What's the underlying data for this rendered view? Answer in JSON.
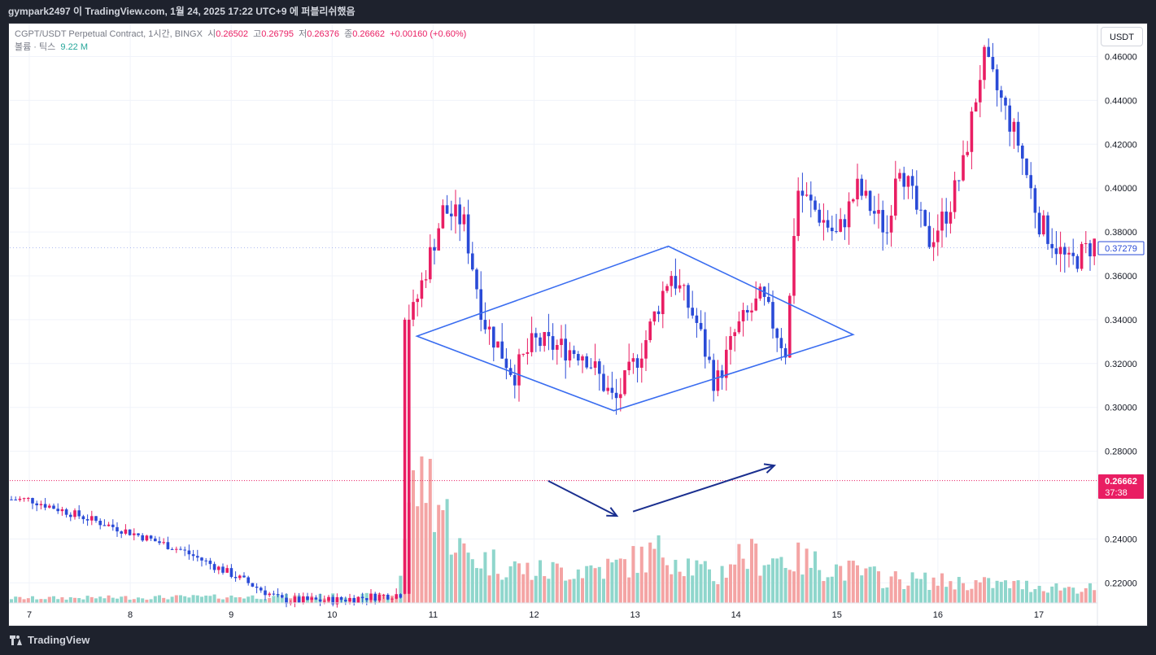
{
  "header": {
    "text": "gympark2497 이 TradingView.com, 1월 24, 2025 17:22 UTC+9 에 퍼블리쉬했음"
  },
  "legend": {
    "symbol": "CGPT/USDT Perpetual Contract, 1시간, BINGX",
    "open_label": "시",
    "open": "0.26502",
    "high_label": "고",
    "high": "0.26795",
    "low_label": "저",
    "low": "0.26376",
    "close_label": "종",
    "close": "0.26662",
    "change": "+0.00160 (+0.60%)",
    "volume_label": "볼륨 · 틱스",
    "volume": "9.22 M"
  },
  "currency_button": "USDT",
  "footer": {
    "brand": "TradingView"
  },
  "colors": {
    "up": "#e91e63",
    "down": "#2a4bd7",
    "vol_up": "#f4a4a4",
    "vol_down": "#8fd6cc",
    "drawing": "#3a6df0",
    "arrow": "#1a2f8f",
    "last_price": "#e91e63",
    "current_price": "#2a4bd7"
  },
  "chart_data": {
    "type": "candlestick",
    "interval": "1시간",
    "ylim": [
      0.21,
      0.47
    ],
    "y_ticks": [
      "0.46000",
      "0.44000",
      "0.42000",
      "0.40000",
      "0.38000",
      "0.36000",
      "0.34000",
      "0.32000",
      "0.30000",
      "0.28000",
      "0.24000",
      "0.22000"
    ],
    "x_ticks": [
      "7",
      "8",
      "9",
      "10",
      "11",
      "12",
      "13",
      "14",
      "15",
      "16",
      "17"
    ],
    "price_labels": {
      "current": "0.37279",
      "last": "0.26662",
      "countdown": "37:38"
    },
    "path": [
      {
        "day": 7,
        "price": 0.258
      },
      {
        "day": 8,
        "price": 0.243
      },
      {
        "day": 8.5,
        "price": 0.235
      },
      {
        "day": 9,
        "price": 0.224
      },
      {
        "day": 9.5,
        "price": 0.212
      },
      {
        "day": 10,
        "price": 0.212
      },
      {
        "day": 10.7,
        "price": 0.215
      },
      {
        "day": 10.75,
        "price": 0.335
      },
      {
        "day": 11.1,
        "price": 0.39
      },
      {
        "day": 11.3,
        "price": 0.385
      },
      {
        "day": 11.5,
        "price": 0.34
      },
      {
        "day": 11.8,
        "price": 0.315
      },
      {
        "day": 12.0,
        "price": 0.33
      },
      {
        "day": 12.5,
        "price": 0.325
      },
      {
        "day": 12.8,
        "price": 0.302
      },
      {
        "day": 13.1,
        "price": 0.33
      },
      {
        "day": 13.35,
        "price": 0.362
      },
      {
        "day": 13.6,
        "price": 0.34
      },
      {
        "day": 13.8,
        "price": 0.31
      },
      {
        "day": 14.0,
        "price": 0.335
      },
      {
        "day": 14.25,
        "price": 0.35
      },
      {
        "day": 14.5,
        "price": 0.325
      },
      {
        "day": 14.6,
        "price": 0.4
      },
      {
        "day": 15.0,
        "price": 0.378
      },
      {
        "day": 15.2,
        "price": 0.4
      },
      {
        "day": 15.5,
        "price": 0.38
      },
      {
        "day": 15.6,
        "price": 0.415
      },
      {
        "day": 15.9,
        "price": 0.375
      },
      {
        "day": 16.1,
        "price": 0.39
      },
      {
        "day": 16.25,
        "price": 0.41
      },
      {
        "day": 16.45,
        "price": 0.46
      },
      {
        "day": 16.8,
        "price": 0.42
      },
      {
        "day": 17.0,
        "price": 0.385
      },
      {
        "day": 17.3,
        "price": 0.365
      },
      {
        "day": 17.55,
        "price": 0.375
      }
    ],
    "volume_profile": [
      {
        "day": 7,
        "vol": 0.2
      },
      {
        "day": 10.65,
        "vol": 0.3
      },
      {
        "day": 10.75,
        "vol": 4
      },
      {
        "day": 10.9,
        "vol": 5.7
      },
      {
        "day": 11.3,
        "vol": 2
      },
      {
        "day": 12.0,
        "vol": 1.3
      },
      {
        "day": 12.8,
        "vol": 1.5
      },
      {
        "day": 13.3,
        "vol": 2.2
      },
      {
        "day": 13.8,
        "vol": 1
      },
      {
        "day": 14.0,
        "vol": 2
      },
      {
        "day": 14.6,
        "vol": 1.8
      },
      {
        "day": 15.5,
        "vol": 1
      },
      {
        "day": 17.5,
        "vol": 0.6
      }
    ],
    "drawings": {
      "diamond": [
        {
          "day": 10.84,
          "price": 0.3325
        },
        {
          "day": 13.33,
          "price": 0.3735
        },
        {
          "day": 15.16,
          "price": 0.3332
        },
        {
          "day": 12.79,
          "price": 0.2985
        }
      ],
      "arrows": [
        {
          "from": {
            "day": 12.14,
            "price": 0.2665
          },
          "to": {
            "day": 12.82,
            "price": 0.2505
          }
        },
        {
          "from": {
            "day": 12.98,
            "price": 0.2525
          },
          "to": {
            "day": 14.38,
            "price": 0.2735
          }
        }
      ]
    }
  }
}
